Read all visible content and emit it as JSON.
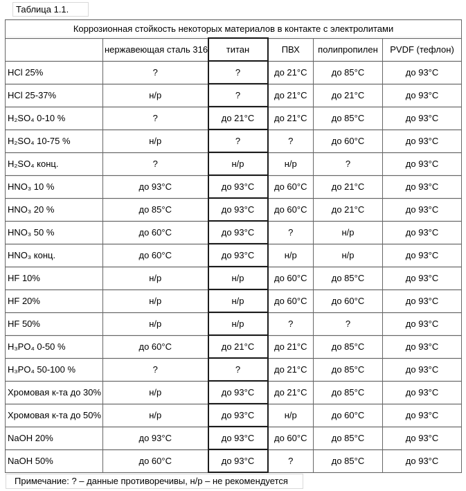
{
  "page_title": "Таблица 1.1.",
  "table": {
    "caption": "Коррозионная стойкость некоторых материалов в контакте с электролитами",
    "columns": [
      "",
      "нержавеющая сталь 316",
      "титан",
      "ПВХ",
      "полипропилен",
      "PVDF (тефлон)"
    ],
    "highlighted_column": "титан",
    "rows": [
      {
        "label": "HCl 25%",
        "values": [
          "?",
          "?",
          "до 21°C",
          "до 85°C",
          "до 93°C"
        ]
      },
      {
        "label": "HCl 25-37%",
        "values": [
          "н/р",
          "?",
          "до 21°C",
          "до 21°C",
          "до 93°C"
        ]
      },
      {
        "label": "H₂SO₄ 0-10 %",
        "values": [
          "?",
          "до 21°C",
          "до 21°C",
          "до 85°C",
          "до 93°C"
        ]
      },
      {
        "label": "H₂SO₄ 10-75 %",
        "values": [
          "н/р",
          "?",
          "?",
          "до 60°C",
          "до 93°C"
        ]
      },
      {
        "label": "H₂SO₄ конц.",
        "values": [
          "?",
          "н/р",
          "н/р",
          "?",
          "до 93°C"
        ]
      },
      {
        "label": "HNO₃ 10 %",
        "values": [
          "до 93°C",
          "до 93°C",
          "до 60°C",
          "до 21°C",
          "до 93°C"
        ]
      },
      {
        "label": "HNO₃ 20 %",
        "values": [
          "до 85°C",
          "до 93°C",
          "до 60°C",
          "до 21°C",
          "до 93°C"
        ]
      },
      {
        "label": "HNO₃ 50 %",
        "values": [
          "до 60°C",
          "до 93°C",
          "?",
          "н/р",
          "до 93°C"
        ]
      },
      {
        "label": "HNO₃ конц.",
        "values": [
          "до 60°C",
          "до 93°C",
          "н/р",
          "н/р",
          "до 93°C"
        ]
      },
      {
        "label": "HF 10%",
        "values": [
          "н/р",
          "н/р",
          "до 60°C",
          "до 85°C",
          "до 93°C"
        ]
      },
      {
        "label": "HF 20%",
        "values": [
          "н/р",
          "н/р",
          "до 60°C",
          "до 60°C",
          "до 93°C"
        ]
      },
      {
        "label": "HF 50%",
        "values": [
          "н/р",
          "н/р",
          "?",
          "?",
          "до 93°C"
        ]
      },
      {
        "label": "H₃PO₄ 0-50 %",
        "values": [
          "до 60°C",
          "до 21°C",
          "до 21°C",
          "до 85°C",
          "до 93°C"
        ]
      },
      {
        "label": "H₃PO₄ 50-100 %",
        "values": [
          "?",
          "?",
          "до 21°C",
          "до 85°C",
          "до 93°C"
        ]
      },
      {
        "label": "Хромовая к-та до 30%",
        "values": [
          "н/р",
          "до 93°C",
          "до 21°C",
          "до 85°C",
          "до 93°C"
        ]
      },
      {
        "label": "Хромовая к-та до 50%",
        "values": [
          "н/р",
          "до 93°C",
          "н/р",
          "до 60°C",
          "до 93°C"
        ]
      },
      {
        "label": "NaOH 20%",
        "values": [
          "до 93°C",
          "до 93°C",
          "до 60°C",
          "до 85°C",
          "до 93°C"
        ]
      },
      {
        "label": "NaOH 50%",
        "values": [
          "до 60°C",
          "до 93°C",
          "?",
          "до 85°C",
          "до 93°C"
        ]
      }
    ]
  },
  "note": "Примечание: ? – данные противоречивы, н/р – не рекомендуется",
  "legend": {
    "question_mark": "данные противоречивы",
    "nr": "не рекомендуется"
  },
  "colors": {
    "grid_border": "#666666",
    "highlight_border": "#1c1c1c",
    "boundary_box": "#d9d9d9",
    "text": "#000000",
    "background": "#ffffff"
  }
}
